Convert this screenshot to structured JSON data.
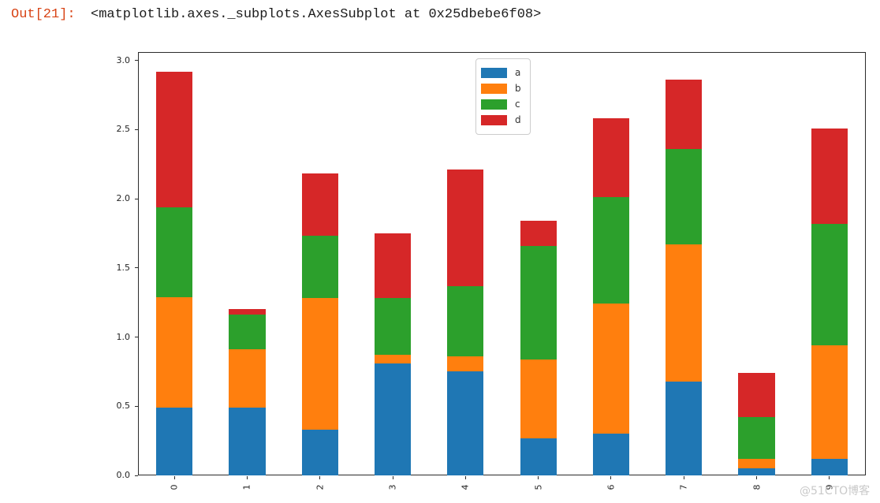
{
  "notebook": {
    "out_prompt": "Out[21]:",
    "out_value": "<matplotlib.axes._subplots.AxesSubplot at 0x25dbebe6f08>",
    "prompt_color": "#d84315"
  },
  "watermark": "@51CTO博客",
  "chart_data": {
    "type": "bar",
    "stacked": true,
    "title": "",
    "xlabel": "",
    "ylabel": "",
    "categories": [
      "0",
      "1",
      "2",
      "3",
      "4",
      "5",
      "6",
      "7",
      "8",
      "9"
    ],
    "series": [
      {
        "name": "a",
        "color": "#1f77b4",
        "values": [
          0.49,
          0.49,
          0.33,
          0.81,
          0.75,
          0.27,
          0.3,
          0.68,
          0.05,
          0.12
        ]
      },
      {
        "name": "b",
        "color": "#ff7f0e",
        "values": [
          0.8,
          0.42,
          0.95,
          0.06,
          0.11,
          0.57,
          0.94,
          0.99,
          0.07,
          0.82
        ]
      },
      {
        "name": "c",
        "color": "#2ca02c",
        "values": [
          0.65,
          0.25,
          0.45,
          0.41,
          0.51,
          0.82,
          0.77,
          0.69,
          0.3,
          0.88
        ]
      },
      {
        "name": "d",
        "color": "#d62728",
        "values": [
          0.98,
          0.04,
          0.45,
          0.47,
          0.84,
          0.18,
          0.57,
          0.5,
          0.32,
          0.69
        ]
      }
    ],
    "ylim": [
      0,
      3.06
    ],
    "yticks": [
      "0.0",
      "0.5",
      "1.0",
      "1.5",
      "2.0",
      "2.5",
      "3.0"
    ],
    "xtick_rotation": 90,
    "bar_width_fraction": 0.5,
    "legend_position": "upper-center",
    "legend_entries": [
      "a",
      "b",
      "c",
      "d"
    ],
    "grid": false
  }
}
